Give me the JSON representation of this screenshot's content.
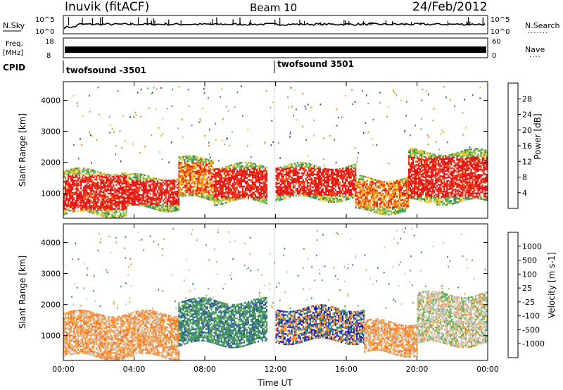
{
  "header": {
    "station": "Inuvik (fitACF)",
    "beam": "Beam 10",
    "date": "24/Feb/2012"
  },
  "strips": {
    "noise": {
      "left_label": "N.Sky",
      "right_label": "N.Search",
      "left_ticks": [
        "10^5",
        "10^0"
      ],
      "right_ticks": [
        "10^5",
        "10^0"
      ]
    },
    "freq": {
      "left_label_top": "Freq.",
      "left_label_bottom": "[MHz]",
      "right_label": "Nave",
      "left_ticks": [
        18,
        8
      ],
      "right_ticks": [
        60,
        0
      ]
    },
    "cpid": {
      "label": "CPID",
      "segments": [
        {
          "text": "twofsound -3501",
          "start": 0,
          "end": 12
        },
        {
          "text": "twofsound 3501",
          "start": 12,
          "end": 24
        }
      ]
    }
  },
  "chart_data": [
    {
      "type": "heatmap",
      "panel": "power",
      "ylabel": "Slant Range [km]",
      "ylim": [
        200,
        4600
      ],
      "yticks": [
        1000,
        2000,
        3000,
        4000
      ],
      "xlim": [
        0,
        24
      ],
      "colorbar": {
        "label": "Power [dB]",
        "tick_labels": [
          "4",
          "8",
          "12",
          "16",
          "20",
          "24",
          "28"
        ],
        "colors": [
          "#0a0ae6",
          "#2e4fb0",
          "#3b8a5a",
          "#70c060",
          "#f4c020",
          "#f78c10",
          "#f05010",
          "#e61010"
        ]
      },
      "regions": [
        {
          "t0": 0.0,
          "t1": 3.6,
          "r0": 300,
          "r1": 1700,
          "level": "high"
        },
        {
          "t0": 3.6,
          "t1": 6.5,
          "r0": 500,
          "r1": 1500,
          "level": "high"
        },
        {
          "t0": 6.5,
          "t1": 8.5,
          "r0": 800,
          "r1": 2100,
          "level": "medium"
        },
        {
          "t0": 8.5,
          "t1": 11.5,
          "r0": 700,
          "r1": 1900,
          "level": "high"
        },
        {
          "t0": 12.0,
          "t1": 16.5,
          "r0": 800,
          "r1": 1900,
          "level": "high"
        },
        {
          "t0": 16.5,
          "t1": 19.5,
          "r0": 400,
          "r1": 1500,
          "level": "medium"
        },
        {
          "t0": 19.5,
          "t1": 24.0,
          "r0": 700,
          "r1": 2300,
          "level": "high"
        }
      ]
    },
    {
      "type": "heatmap",
      "panel": "velocity",
      "ylabel": "Slant Range [km]",
      "ylim": [
        200,
        4600
      ],
      "yticks": [
        1000,
        2000,
        3000,
        4000
      ],
      "xlim": [
        0,
        24
      ],
      "xticks": [
        "00:00",
        "04:00",
        "08:00",
        "12:00",
        "16:00",
        "20:00",
        "00:00"
      ],
      "xlabel": "Time UT",
      "colorbar": {
        "label": "Velocity [m s-1]",
        "tick_labels": [
          "1000",
          "500",
          "100",
          "25",
          "-25",
          "-100",
          "-500",
          "-1000"
        ],
        "colors": [
          "#0a14d0",
          "#2850a0",
          "#3a8a6a",
          "#60b050",
          "#90d030",
          "#c8c8c8",
          "#f8a040",
          "#f87020",
          "#f03010"
        ]
      },
      "regions": [
        {
          "t0": 0.0,
          "t1": 6.5,
          "r0": 300,
          "r1": 1700,
          "level": "negative"
        },
        {
          "t0": 6.5,
          "t1": 11.5,
          "r0": 700,
          "r1": 2100,
          "level": "positive"
        },
        {
          "t0": 12.0,
          "t1": 17.0,
          "r0": 800,
          "r1": 1900,
          "level": "mixed"
        },
        {
          "t0": 17.0,
          "t1": 20.0,
          "r0": 400,
          "r1": 1400,
          "level": "negative"
        },
        {
          "t0": 20.0,
          "t1": 24.0,
          "r0": 700,
          "r1": 2300,
          "level": "near-zero"
        }
      ]
    }
  ]
}
